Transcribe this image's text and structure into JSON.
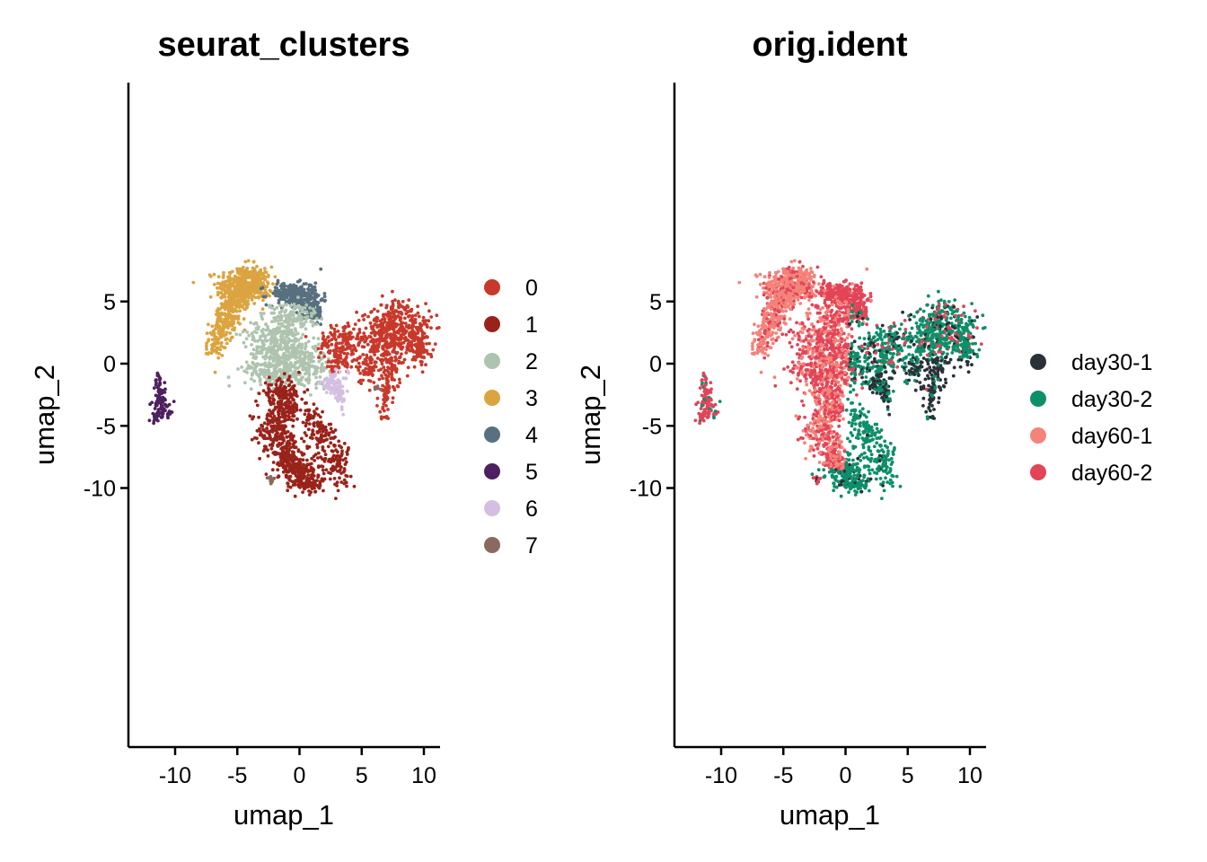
{
  "chart_data": [
    {
      "type": "scatter",
      "title": "seurat_clusters",
      "xlabel": "umap_1",
      "ylabel": "umap_2",
      "xlim": [
        -13.5,
        11.5
      ],
      "ylim": [
        -11.0,
        8.0
      ],
      "xticks": [
        -10,
        -5,
        0,
        5,
        10
      ],
      "yticks": [
        5,
        0,
        -5,
        -10
      ],
      "xtick_labels": [
        "-10",
        "-5",
        "0",
        "5",
        "10"
      ],
      "ytick_labels": [
        "5",
        "0",
        "-5",
        "-10"
      ],
      "legend_position": "right",
      "grid": false,
      "series": [
        {
          "name": "0",
          "color": "#C8392B"
        },
        {
          "name": "1",
          "color": "#99231A"
        },
        {
          "name": "2",
          "color": "#AEC4AF"
        },
        {
          "name": "3",
          "color": "#DBA440"
        },
        {
          "name": "4",
          "color": "#58707F"
        },
        {
          "name": "5",
          "color": "#4E2060"
        },
        {
          "name": "6",
          "color": "#D4BFE2"
        },
        {
          "name": "7",
          "color": "#8A6A5E"
        }
      ]
    },
    {
      "type": "scatter",
      "title": "orig.ident",
      "xlabel": "umap_1",
      "ylabel": "umap_2",
      "xlim": [
        -13.5,
        11.5
      ],
      "ylim": [
        -11.0,
        8.0
      ],
      "xticks": [
        -10,
        -5,
        0,
        5,
        10
      ],
      "yticks": [
        5,
        0,
        -5,
        -10
      ],
      "xtick_labels": [
        "-10",
        "-5",
        "0",
        "5",
        "10"
      ],
      "ytick_labels": [
        "5",
        "0",
        "-5",
        "-10"
      ],
      "legend_position": "right",
      "grid": false,
      "series": [
        {
          "name": "day30-1",
          "color": "#2A3138"
        },
        {
          "name": "day30-2",
          "color": "#0D8F6A"
        },
        {
          "name": "day60-1",
          "color": "#F4837A"
        },
        {
          "name": "day60-2",
          "color": "#E24458"
        }
      ]
    }
  ]
}
